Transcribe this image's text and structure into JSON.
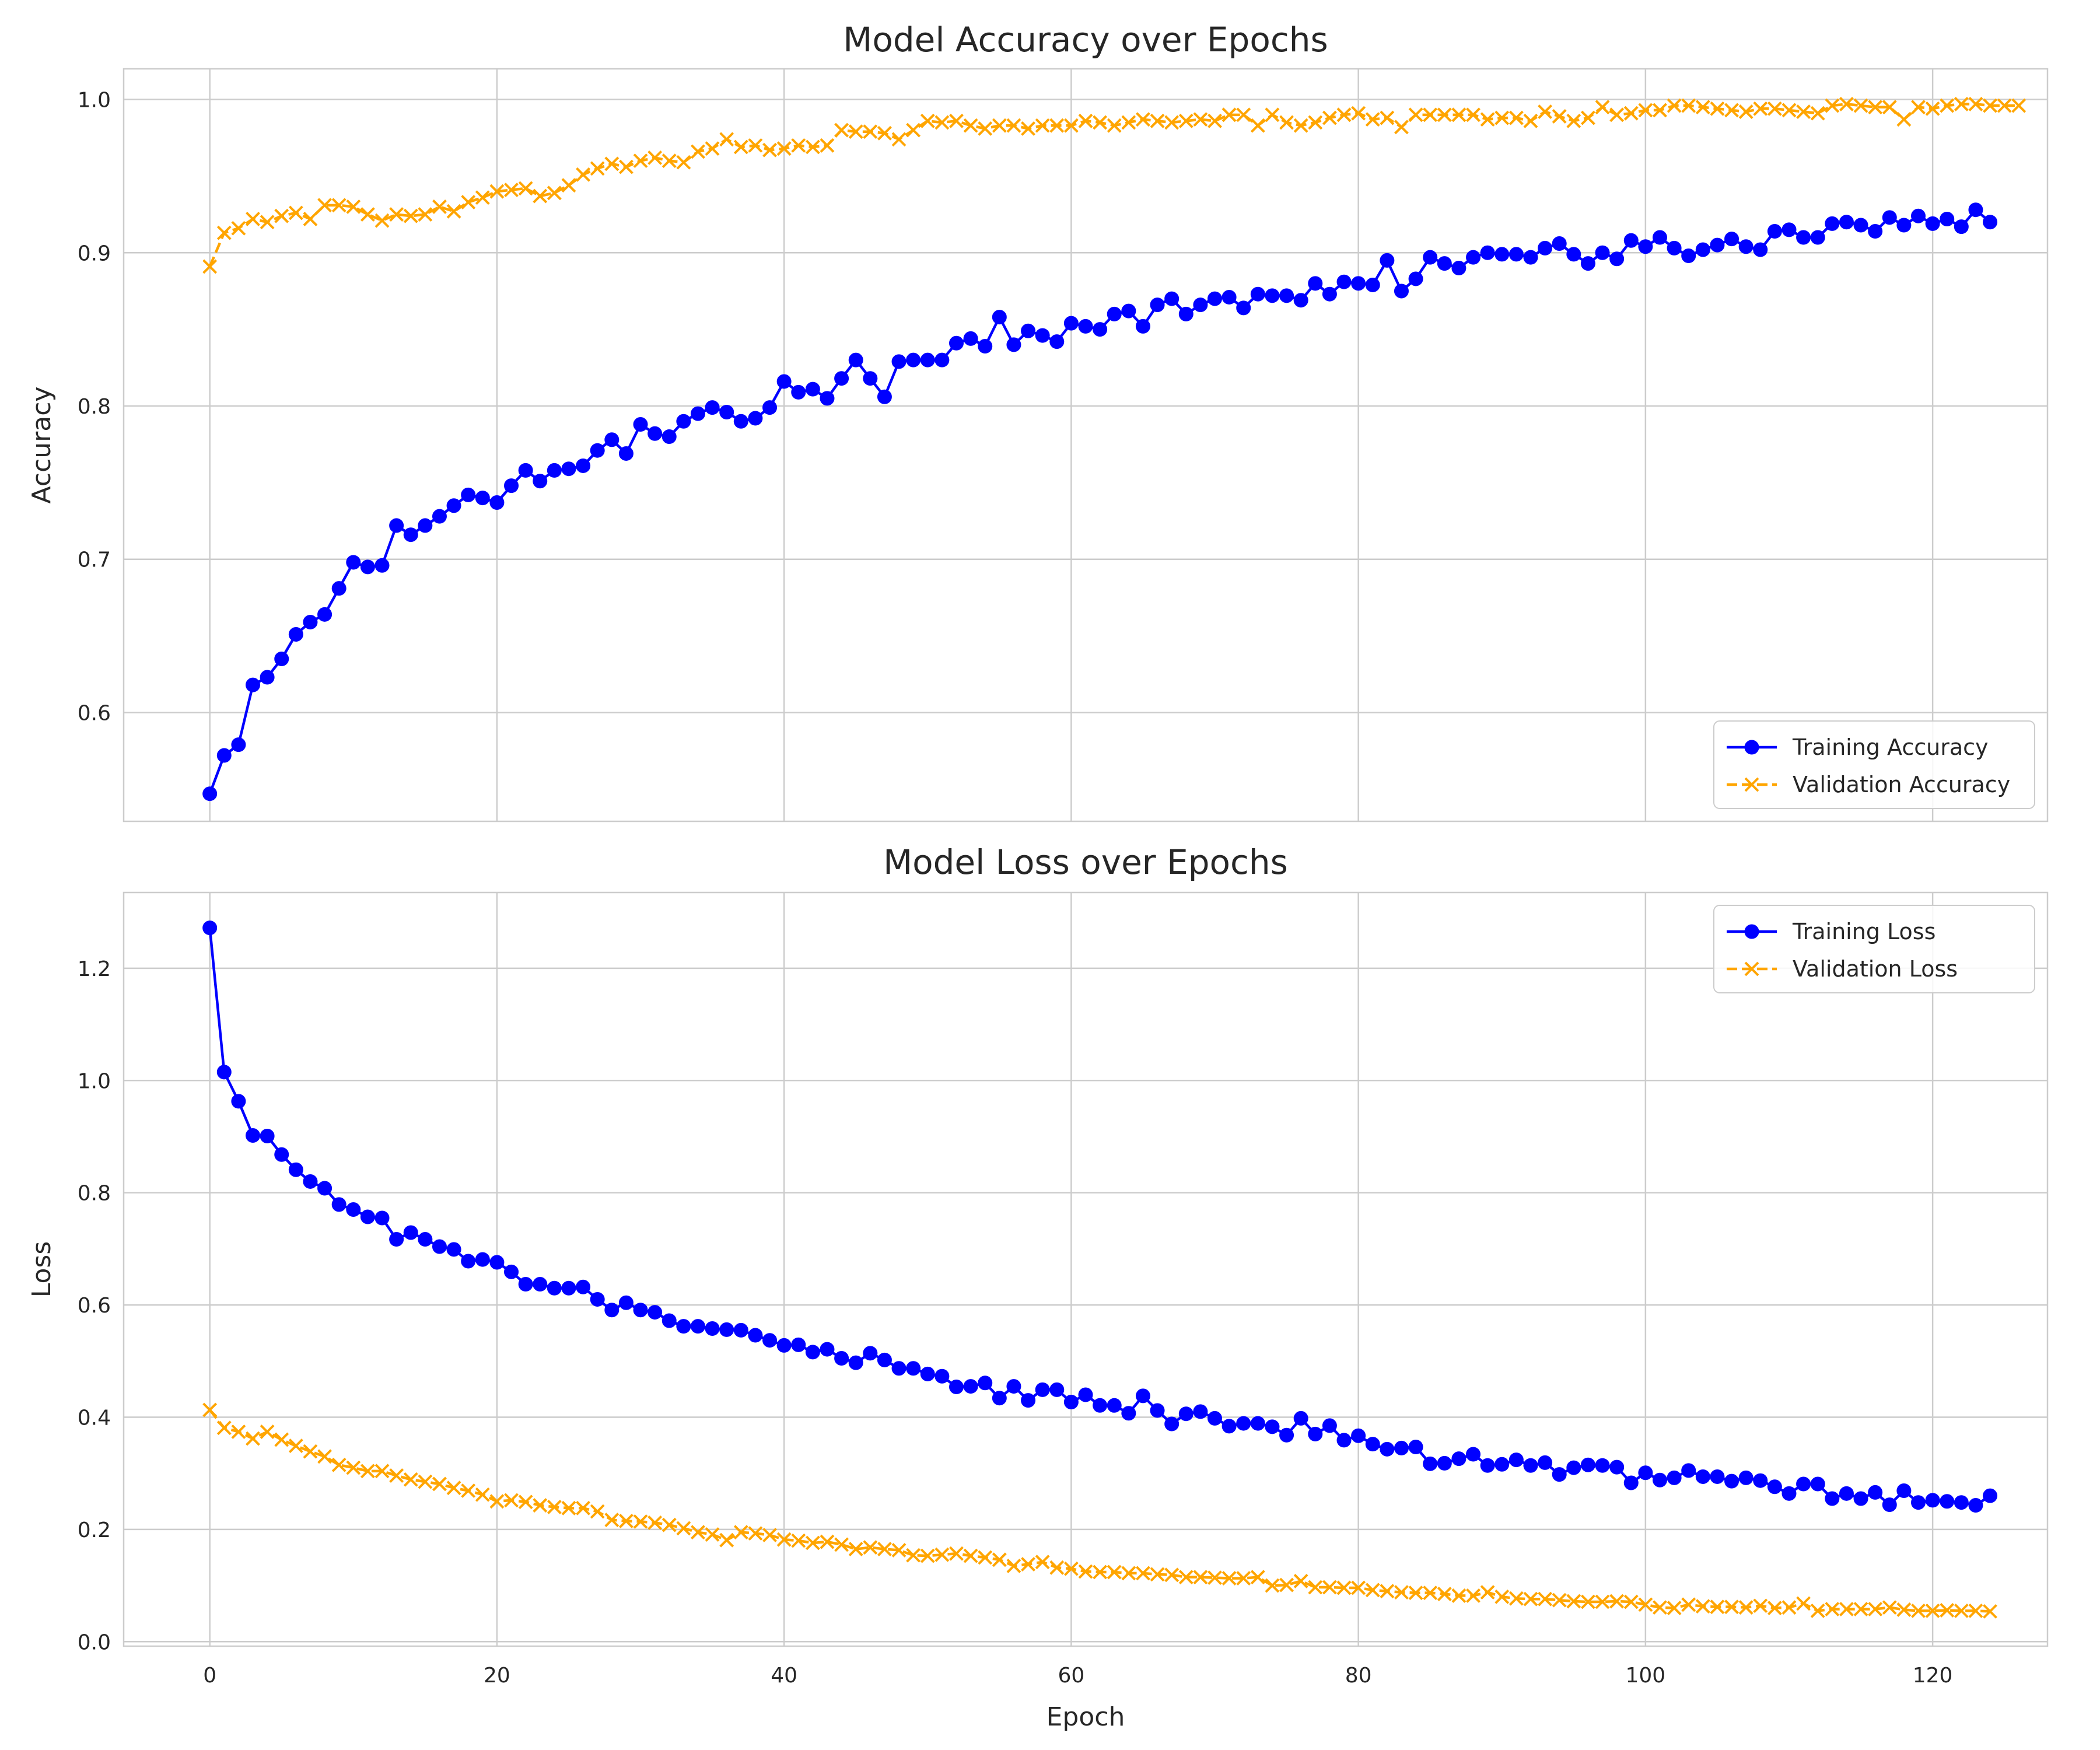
{
  "chart_data": [
    {
      "type": "line",
      "title": "Model Accuracy over Epochs",
      "xlabel": "",
      "ylabel": "Accuracy",
      "xlim": [
        -6,
        128
      ],
      "ylim": [
        0.529,
        1.02
      ],
      "xticks": [
        0,
        20,
        40,
        60,
        80,
        100,
        120
      ],
      "yticks": [
        0.6,
        0.7,
        0.8,
        0.9,
        1.0
      ],
      "ytick_labels": [
        "0.6",
        "0.7",
        "0.8",
        "0.9",
        "1.0"
      ],
      "grid": true,
      "legend_position": "lower-right",
      "series": [
        {
          "name": "Training Accuracy",
          "color": "#0000ff",
          "marker": "circle",
          "linestyle": "solid",
          "values": [
            0.547,
            0.572,
            0.579,
            0.618,
            0.623,
            0.635,
            0.651,
            0.659,
            0.664,
            0.681,
            0.698,
            0.695,
            0.696,
            0.722,
            0.716,
            0.722,
            0.728,
            0.735,
            0.742,
            0.74,
            0.737,
            0.748,
            0.758,
            0.751,
            0.758,
            0.759,
            0.761,
            0.771,
            0.778,
            0.769,
            0.788,
            0.782,
            0.78,
            0.79,
            0.795,
            0.799,
            0.796,
            0.79,
            0.792,
            0.799,
            0.816,
            0.809,
            0.811,
            0.805,
            0.818,
            0.83,
            0.818,
            0.806,
            0.829,
            0.83,
            0.83,
            0.83,
            0.841,
            0.844,
            0.839,
            0.858,
            0.84,
            0.849,
            0.846,
            0.842,
            0.854,
            0.852,
            0.85,
            0.86,
            0.862,
            0.852,
            0.866,
            0.87,
            0.86,
            0.866,
            0.87,
            0.871,
            0.864,
            0.873,
            0.872,
            0.872,
            0.869,
            0.88,
            0.873,
            0.881,
            0.88,
            0.879,
            0.895,
            0.875,
            0.883,
            0.897,
            0.893,
            0.89,
            0.897,
            0.9,
            0.899,
            0.899,
            0.897,
            0.903,
            0.906,
            0.899,
            0.893,
            0.9,
            0.896,
            0.908,
            0.904,
            0.91,
            0.903,
            0.898,
            0.902,
            0.905,
            0.909,
            0.904,
            0.902,
            0.914,
            0.915,
            0.91,
            0.91,
            0.919,
            0.92,
            0.918,
            0.914,
            0.923,
            0.918,
            0.924,
            0.919,
            0.922,
            0.917,
            0.928,
            0.92
          ]
        },
        {
          "name": "Validation Accuracy",
          "color": "#ffa500",
          "marker": "x",
          "linestyle": "dashed",
          "values": [
            0.891,
            0.913,
            0.916,
            0.922,
            0.92,
            0.924,
            0.926,
            0.922,
            0.931,
            0.931,
            0.93,
            0.925,
            0.921,
            0.925,
            0.924,
            0.925,
            0.93,
            0.927,
            0.933,
            0.936,
            0.94,
            0.941,
            0.942,
            0.937,
            0.939,
            0.944,
            0.951,
            0.955,
            0.958,
            0.956,
            0.96,
            0.962,
            0.96,
            0.959,
            0.966,
            0.968,
            0.974,
            0.969,
            0.97,
            0.967,
            0.968,
            0.97,
            0.969,
            0.97,
            0.98,
            0.979,
            0.979,
            0.978,
            0.974,
            0.98,
            0.986,
            0.985,
            0.986,
            0.983,
            0.981,
            0.983,
            0.983,
            0.981,
            0.983,
            0.983,
            0.983,
            0.986,
            0.985,
            0.983,
            0.985,
            0.987,
            0.986,
            0.985,
            0.986,
            0.987,
            0.986,
            0.99,
            0.99,
            0.983,
            0.99,
            0.985,
            0.983,
            0.985,
            0.988,
            0.99,
            0.991,
            0.987,
            0.988,
            0.982,
            0.99,
            0.99,
            0.99,
            0.99,
            0.99,
            0.987,
            0.988,
            0.988,
            0.986,
            0.992,
            0.989,
            0.986,
            0.988,
            0.995,
            0.99,
            0.991,
            0.993,
            0.993,
            0.996,
            0.996,
            0.995,
            0.994,
            0.993,
            0.992,
            0.994,
            0.994,
            0.993,
            0.992,
            0.991,
            0.996,
            0.997,
            0.996,
            0.995,
            0.995,
            0.987,
            0.995,
            0.994,
            0.996,
            0.997,
            0.997,
            0.996,
            0.996,
            0.996
          ]
        }
      ]
    },
    {
      "type": "line",
      "title": "Model Loss over Epochs",
      "xlabel": "Epoch",
      "ylabel": "Loss",
      "xlim": [
        -6,
        128
      ],
      "ylim": [
        -0.008,
        1.335
      ],
      "xticks": [
        0,
        20,
        40,
        60,
        80,
        100,
        120
      ],
      "xtick_labels": [
        "0",
        "20",
        "40",
        "60",
        "80",
        "100",
        "120"
      ],
      "yticks": [
        0.0,
        0.2,
        0.4,
        0.6,
        0.8,
        1.0,
        1.2
      ],
      "ytick_labels": [
        "0.0",
        "0.2",
        "0.4",
        "0.6",
        "0.8",
        "1.0",
        "1.2"
      ],
      "grid": true,
      "legend_position": "upper-right",
      "series": [
        {
          "name": "Training Loss",
          "color": "#0000ff",
          "marker": "circle",
          "linestyle": "solid",
          "values": [
            1.272,
            1.015,
            0.963,
            0.902,
            0.901,
            0.868,
            0.841,
            0.82,
            0.808,
            0.779,
            0.77,
            0.757,
            0.755,
            0.717,
            0.729,
            0.717,
            0.704,
            0.699,
            0.678,
            0.681,
            0.676,
            0.659,
            0.637,
            0.637,
            0.63,
            0.63,
            0.632,
            0.61,
            0.591,
            0.604,
            0.591,
            0.587,
            0.572,
            0.562,
            0.562,
            0.558,
            0.556,
            0.555,
            0.546,
            0.537,
            0.528,
            0.529,
            0.516,
            0.521,
            0.505,
            0.497,
            0.514,
            0.502,
            0.487,
            0.487,
            0.477,
            0.473,
            0.454,
            0.455,
            0.461,
            0.434,
            0.455,
            0.43,
            0.449,
            0.449,
            0.427,
            0.44,
            0.421,
            0.421,
            0.407,
            0.438,
            0.412,
            0.388,
            0.406,
            0.41,
            0.398,
            0.384,
            0.389,
            0.389,
            0.383,
            0.368,
            0.398,
            0.37,
            0.385,
            0.359,
            0.367,
            0.352,
            0.343,
            0.345,
            0.347,
            0.317,
            0.318,
            0.326,
            0.334,
            0.314,
            0.316,
            0.324,
            0.314,
            0.319,
            0.298,
            0.31,
            0.315,
            0.314,
            0.311,
            0.283,
            0.301,
            0.288,
            0.292,
            0.305,
            0.294,
            0.294,
            0.286,
            0.292,
            0.287,
            0.276,
            0.264,
            0.281,
            0.281,
            0.255,
            0.264,
            0.255,
            0.266,
            0.244,
            0.269,
            0.248,
            0.252,
            0.25,
            0.248,
            0.243,
            0.26
          ]
        },
        {
          "name": "Validation Loss",
          "color": "#ffa500",
          "marker": "x",
          "linestyle": "dashed",
          "values": [
            0.413,
            0.381,
            0.374,
            0.362,
            0.374,
            0.36,
            0.349,
            0.339,
            0.33,
            0.315,
            0.31,
            0.304,
            0.304,
            0.296,
            0.289,
            0.285,
            0.281,
            0.274,
            0.269,
            0.262,
            0.25,
            0.252,
            0.249,
            0.243,
            0.24,
            0.238,
            0.238,
            0.232,
            0.217,
            0.215,
            0.214,
            0.212,
            0.208,
            0.202,
            0.195,
            0.191,
            0.181,
            0.195,
            0.193,
            0.19,
            0.182,
            0.18,
            0.176,
            0.178,
            0.173,
            0.165,
            0.168,
            0.165,
            0.163,
            0.154,
            0.153,
            0.155,
            0.157,
            0.153,
            0.15,
            0.146,
            0.135,
            0.138,
            0.142,
            0.132,
            0.13,
            0.125,
            0.124,
            0.124,
            0.122,
            0.122,
            0.12,
            0.119,
            0.115,
            0.115,
            0.114,
            0.113,
            0.113,
            0.115,
            0.1,
            0.101,
            0.108,
            0.097,
            0.097,
            0.096,
            0.096,
            0.092,
            0.09,
            0.088,
            0.087,
            0.087,
            0.085,
            0.082,
            0.082,
            0.088,
            0.08,
            0.077,
            0.076,
            0.076,
            0.074,
            0.072,
            0.071,
            0.071,
            0.072,
            0.071,
            0.066,
            0.061,
            0.06,
            0.066,
            0.063,
            0.062,
            0.062,
            0.061,
            0.064,
            0.06,
            0.061,
            0.068,
            0.055,
            0.058,
            0.058,
            0.058,
            0.058,
            0.061,
            0.057,
            0.055,
            0.055,
            0.056,
            0.055,
            0.055,
            0.054
          ]
        }
      ]
    }
  ]
}
